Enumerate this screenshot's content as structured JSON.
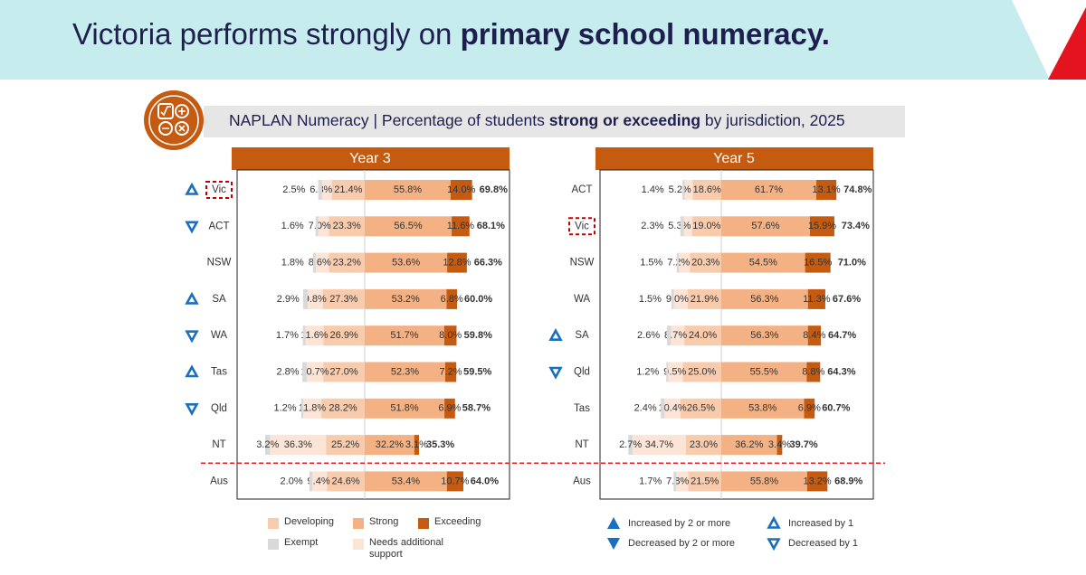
{
  "header": {
    "title": [
      "Victoria performs strongly on",
      "primary school numeracy."
    ]
  },
  "subtitle": [
    "NAPLAN Numeracy | Percentage of students",
    "strong or exceeding",
    "by jurisdiction, 2025"
  ],
  "change_color": "#1b6fbf",
  "change_legend": [
    {
      "symbol": "up2",
      "label": "Increased by 2 or more"
    },
    {
      "symbol": "down2",
      "label": "Decreased by 2 or more"
    },
    {
      "symbol": "up1",
      "label": "Increased by 1"
    },
    {
      "symbol": "down1",
      "label": "Decreased by 1"
    }
  ],
  "chart_data": [
    {
      "type": "diverging_bar",
      "title": "Year 3",
      "header_color": "#c55a11",
      "categories": [
        "Vic",
        "ACT",
        "NSW",
        "SA",
        "WA",
        "Tas",
        "Qld",
        "NT",
        "Aus"
      ],
      "change": [
        "up1",
        "down1",
        null,
        "up1",
        "down1",
        "up1",
        "down1",
        null,
        null
      ],
      "highlight": 0,
      "separator_before": 8,
      "series": [
        {
          "name": "Exempt",
          "side": "left",
          "color": "#d9d9d9",
          "label_color": "#333333",
          "values": [
            2.5,
            1.6,
            1.8,
            2.9,
            1.7,
            2.8,
            1.2,
            3.2,
            2.0
          ],
          "value_labels": [
            "2.5%",
            "1.6%",
            "1.8%",
            "2.9%",
            "1.7%",
            "2.8%",
            "1.2%",
            "3.2%",
            "2.0%"
          ]
        },
        {
          "name": "Needs additional support",
          "side": "left",
          "color": "#fce4d6",
          "label_color": "#333333",
          "values": [
            6.3,
            7.0,
            8.6,
            9.8,
            11.6,
            10.7,
            11.8,
            36.3,
            9.4
          ],
          "value_labels": [
            "6.3%",
            "7.0%",
            "8.6%",
            "9.8%",
            "11.6%",
            "10.7%",
            "11.8%",
            "36.3%",
            "9.4%"
          ]
        },
        {
          "name": "Developing",
          "side": "left",
          "color": "#f8cbad",
          "label_color": "#333333",
          "values": [
            21.4,
            23.3,
            23.2,
            27.3,
            26.9,
            27.0,
            28.2,
            25.2,
            24.6
          ],
          "value_labels": [
            "21.4%",
            "23.3%",
            "23.2%",
            "27.3%",
            "26.9%",
            "27.0%",
            "28.2%",
            "25.2%",
            "24.6%"
          ]
        },
        {
          "name": "Strong",
          "side": "right",
          "color": "#f4b183",
          "label_color": "#333333",
          "values": [
            55.8,
            56.5,
            53.6,
            53.2,
            51.7,
            52.3,
            51.8,
            32.2,
            53.4
          ],
          "value_labels": [
            "55.8%",
            "56.5%",
            "53.6%",
            "53.2%",
            "51.7%",
            "52.3%",
            "51.8%",
            "32.2%",
            "53.4%"
          ]
        },
        {
          "name": "Exceeding",
          "side": "right",
          "color": "#c55a11",
          "label_color": "#ffffff",
          "values": [
            14.0,
            11.6,
            12.8,
            6.8,
            8.0,
            7.2,
            6.9,
            3.1,
            10.7
          ],
          "value_labels": [
            "14.0%",
            "11.6%",
            "12.8%",
            "6.8%",
            "8.0%",
            "7.2%",
            "6.9%",
            "3.1%",
            "10.7%"
          ]
        }
      ],
      "total": {
        "color": "#843c0c",
        "values": [
          69.8,
          68.1,
          66.3,
          60.0,
          59.8,
          59.5,
          58.7,
          35.3,
          64.0
        ],
        "value_labels": [
          "69.8%",
          "68.1%",
          "66.3%",
          "60.0%",
          "59.8%",
          "59.5%",
          "58.7%",
          "35.3%",
          "64.0%"
        ]
      }
    },
    {
      "type": "diverging_bar",
      "title": "Year 5",
      "header_color": "#c55a11",
      "categories": [
        "ACT",
        "Vic",
        "NSW",
        "WA",
        "SA",
        "Qld",
        "Tas",
        "NT",
        "Aus"
      ],
      "change": [
        null,
        null,
        null,
        null,
        "up1",
        "down1",
        null,
        null,
        null
      ],
      "highlight": 1,
      "separator_before": 8,
      "series": [
        {
          "name": "Exempt",
          "side": "left",
          "color": "#d9d9d9",
          "label_color": "#333333",
          "values": [
            1.4,
            2.3,
            1.5,
            1.5,
            2.6,
            1.2,
            2.4,
            2.7,
            1.7
          ],
          "value_labels": [
            "1.4%",
            "2.3%",
            "1.5%",
            "1.5%",
            "2.6%",
            "1.2%",
            "2.4%",
            "2.7%",
            "1.7%"
          ]
        },
        {
          "name": "Needs additional support",
          "side": "left",
          "color": "#fce4d6",
          "label_color": "#333333",
          "values": [
            5.2,
            5.3,
            7.2,
            9.0,
            8.7,
            9.5,
            10.4,
            34.7,
            7.8
          ],
          "value_labels": [
            "5.2%",
            "5.3%",
            "7.2%",
            "9.0%",
            "8.7%",
            "9.5%",
            "10.4%",
            "34.7%",
            "7.8%"
          ]
        },
        {
          "name": "Developing",
          "side": "left",
          "color": "#f8cbad",
          "label_color": "#333333",
          "values": [
            18.6,
            19.0,
            20.3,
            21.9,
            24.0,
            25.0,
            26.5,
            23.0,
            21.5
          ],
          "value_labels": [
            "18.6%",
            "19.0%",
            "20.3%",
            "21.9%",
            "24.0%",
            "25.0%",
            "26.5%",
            "23.0%",
            "21.5%"
          ]
        },
        {
          "name": "Strong",
          "side": "right",
          "color": "#f4b183",
          "label_color": "#333333",
          "values": [
            61.7,
            57.6,
            54.5,
            56.3,
            56.3,
            55.5,
            53.8,
            36.2,
            55.8
          ],
          "value_labels": [
            "61.7%",
            "57.6%",
            "54.5%",
            "56.3%",
            "56.3%",
            "55.5%",
            "53.8%",
            "36.2%",
            "55.8%"
          ]
        },
        {
          "name": "Exceeding",
          "side": "right",
          "color": "#c55a11",
          "label_color": "#ffffff",
          "values": [
            13.1,
            15.9,
            16.5,
            11.3,
            8.4,
            8.8,
            6.9,
            3.4,
            13.2
          ],
          "value_labels": [
            "13.1%",
            "15.9%",
            "16.5%",
            "11.3%",
            "8.4%",
            "8.8%",
            "6.9%",
            "3.4%",
            "13.2%"
          ]
        }
      ],
      "total": {
        "color": "#843c0c",
        "values": [
          74.8,
          73.4,
          71.0,
          67.6,
          64.7,
          64.3,
          60.7,
          39.7,
          68.9
        ],
        "value_labels": [
          "74.8%",
          "73.4%",
          "71.0%",
          "67.6%",
          "64.7%",
          "64.3%",
          "60.7%",
          "39.7%",
          "68.9%"
        ]
      }
    }
  ]
}
